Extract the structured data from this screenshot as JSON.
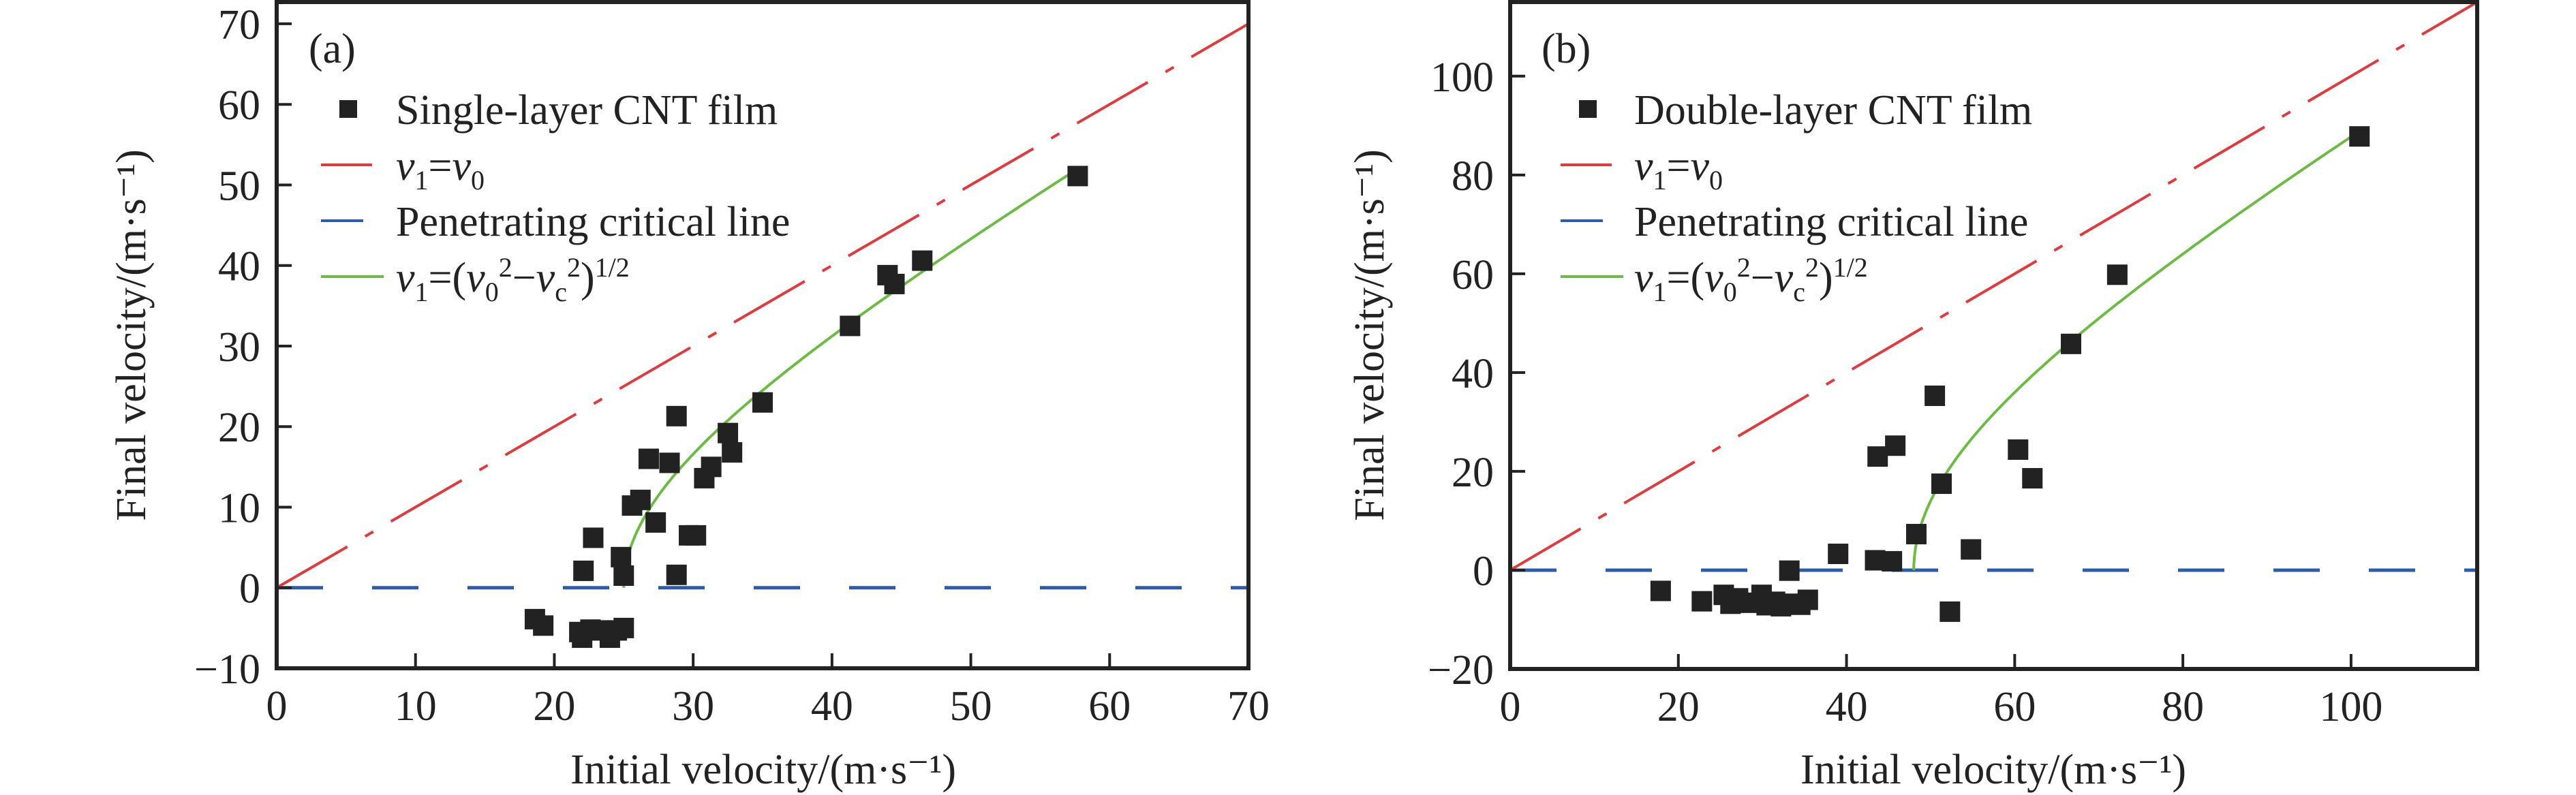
{
  "colors": {
    "marker": "#222222",
    "identity_line": "#e03a3e",
    "critical_line": "#2b5caa",
    "fit_curve": "#6dbb45",
    "axis": "#222222"
  },
  "chart_data": [
    {
      "type": "scatter",
      "panel_label": "(a)",
      "xlabel": "Initial velocity/(m·s⁻¹)",
      "ylabel": "Final velocity/(m·s⁻¹)",
      "xlim": [
        0,
        70
      ],
      "ylim": [
        -10,
        72.7
      ],
      "xticks": [
        0,
        10,
        20,
        30,
        40,
        50,
        60,
        70
      ],
      "yticks": [
        -10,
        0,
        10,
        20,
        30,
        40,
        50,
        60,
        70
      ],
      "grid": false,
      "legend_position": "top-left",
      "legend": [
        {
          "kind": "marker",
          "segments": [
            {
              "t": "Single-layer CNT film"
            }
          ]
        },
        {
          "kind": "dashdot-red",
          "segments": [
            {
              "t": "v",
              "s": "i"
            },
            {
              "t": "1",
              "s": "sub"
            },
            {
              "t": "="
            },
            {
              "t": "v",
              "s": "i"
            },
            {
              "t": "0",
              "s": "sub"
            }
          ]
        },
        {
          "kind": "dash-blue",
          "segments": [
            {
              "t": "Penetrating critical line"
            }
          ]
        },
        {
          "kind": "solid-green",
          "segments": [
            {
              "t": "v",
              "s": "i"
            },
            {
              "t": "1",
              "s": "sub"
            },
            {
              "t": "=("
            },
            {
              "t": "v",
              "s": "i"
            },
            {
              "t": "0",
              "s": "sub"
            },
            {
              "t": "2",
              "s": "sup"
            },
            {
              "t": "−"
            },
            {
              "t": "v",
              "s": "i"
            },
            {
              "t": "c",
              "s": "sub"
            },
            {
              "t": "2",
              "s": "sup"
            },
            {
              "t": ")"
            },
            {
              "t": "1/2",
              "s": "sup"
            }
          ]
        }
      ],
      "critical_velocity": 25,
      "fit_x_end": 57.7,
      "points": [
        [
          18.6,
          -3.9
        ],
        [
          19.2,
          -4.7
        ],
        [
          21.8,
          -5.5
        ],
        [
          22.0,
          -6.2
        ],
        [
          22.6,
          -5.2
        ],
        [
          23.3,
          -5.3
        ],
        [
          24.0,
          -6.2
        ],
        [
          24.5,
          -5.3
        ],
        [
          25.0,
          -5.0
        ],
        [
          22.1,
          2.1
        ],
        [
          25.0,
          1.5
        ],
        [
          28.8,
          1.6
        ],
        [
          24.8,
          3.8
        ],
        [
          22.8,
          6.2
        ],
        [
          29.7,
          6.5
        ],
        [
          30.2,
          6.5
        ],
        [
          27.3,
          8.1
        ],
        [
          25.6,
          10.2
        ],
        [
          26.2,
          10.9
        ],
        [
          30.8,
          13.6
        ],
        [
          31.3,
          15.0
        ],
        [
          28.3,
          15.5
        ],
        [
          26.8,
          16.0
        ],
        [
          32.8,
          16.8
        ],
        [
          32.5,
          19.2
        ],
        [
          28.8,
          21.3
        ],
        [
          35.0,
          23.0
        ],
        [
          41.3,
          32.5
        ],
        [
          44.5,
          37.7
        ],
        [
          44.0,
          38.8
        ],
        [
          46.5,
          40.6
        ],
        [
          57.7,
          51.1
        ]
      ]
    },
    {
      "type": "scatter",
      "panel_label": "(b)",
      "xlabel": "Initial velocity/(m·s⁻¹)",
      "ylabel": "Final velocity/(m·s⁻¹)",
      "xlim": [
        0,
        115
      ],
      "ylim": [
        -20,
        115
      ],
      "xticks": [
        0,
        20,
        40,
        60,
        80,
        100
      ],
      "yticks": [
        -20,
        0,
        20,
        40,
        60,
        80,
        100
      ],
      "grid": false,
      "legend_position": "top-left",
      "legend": [
        {
          "kind": "marker",
          "segments": [
            {
              "t": "Double-layer CNT film"
            }
          ]
        },
        {
          "kind": "dashdot-red",
          "segments": [
            {
              "t": "v",
              "s": "i"
            },
            {
              "t": "1",
              "s": "sub"
            },
            {
              "t": "="
            },
            {
              "t": "v",
              "s": "i"
            },
            {
              "t": "0",
              "s": "sub"
            }
          ]
        },
        {
          "kind": "dash-blue",
          "segments": [
            {
              "t": "Penetrating critical line"
            }
          ]
        },
        {
          "kind": "solid-green",
          "segments": [
            {
              "t": "v",
              "s": "i"
            },
            {
              "t": "1",
              "s": "sub"
            },
            {
              "t": "=("
            },
            {
              "t": "v",
              "s": "i"
            },
            {
              "t": "0",
              "s": "sub"
            },
            {
              "t": "2",
              "s": "sup"
            },
            {
              "t": "−"
            },
            {
              "t": "v",
              "s": "i"
            },
            {
              "t": "c",
              "s": "sub"
            },
            {
              "t": "2",
              "s": "sup"
            },
            {
              "t": ")"
            },
            {
              "t": "1/2",
              "s": "sup"
            }
          ]
        }
      ],
      "critical_velocity": 48,
      "fit_x_end": 101,
      "points": [
        [
          17.9,
          -4.2
        ],
        [
          22.8,
          -6.3
        ],
        [
          25.4,
          -5.0
        ],
        [
          26.2,
          -6.8
        ],
        [
          27.1,
          -5.7
        ],
        [
          28.5,
          -6.6
        ],
        [
          29.9,
          -5.0
        ],
        [
          30.5,
          -7.1
        ],
        [
          31.5,
          -6.4
        ],
        [
          32.2,
          -7.3
        ],
        [
          33.2,
          -6.8
        ],
        [
          34.5,
          -7.0
        ],
        [
          35.4,
          -6.0
        ],
        [
          33.2,
          -0.1
        ],
        [
          39.0,
          3.3
        ],
        [
          43.4,
          2.0
        ],
        [
          45.4,
          1.8
        ],
        [
          48.3,
          7.3
        ],
        [
          54.8,
          4.2
        ],
        [
          52.3,
          -8.4
        ],
        [
          43.7,
          23.0
        ],
        [
          45.8,
          25.2
        ],
        [
          50.5,
          35.3
        ],
        [
          51.3,
          17.5
        ],
        [
          60.4,
          24.4
        ],
        [
          62.1,
          18.6
        ],
        [
          66.7,
          45.8
        ],
        [
          72.2,
          59.8
        ],
        [
          101.0,
          87.8
        ]
      ]
    }
  ]
}
